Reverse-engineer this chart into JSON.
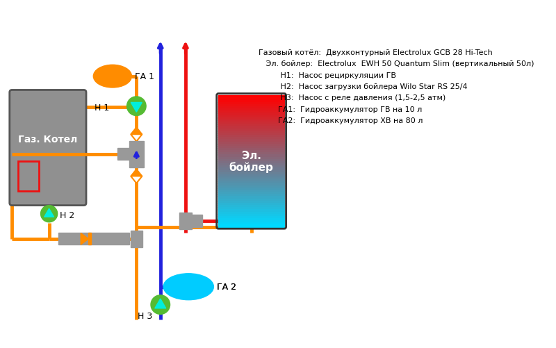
{
  "bg_color": "#ffffff",
  "legend_lines": [
    "Газовый котёл:  Двухконтурный Electrolux GCB 28 Hi-Tech",
    "   Эл. бойлер:  Electrolux  EWH 50 Quantum Slim (вертикальный 50л)",
    "         Н1:  Насос рециркуляции ГВ",
    "         Н2:  Насос загрузки бойлера Wilo Star RS 25/4",
    "         Н3:  Насос с реле давления (1,5-2,5 атм)",
    "        ГА1:  Гидроаккумулятор ГВ на 10 л",
    "        ГА2:  Гидроаккумулятор ХВ на 80 л"
  ],
  "colors": {
    "orange": "#FF8C00",
    "red": "#EE1111",
    "blue": "#2222DD",
    "green": "#55BB33",
    "gray": "#909090",
    "dark_gray": "#666666",
    "tee_gray": "#999999",
    "white": "#FFFFFF"
  },
  "lw": 3.5
}
